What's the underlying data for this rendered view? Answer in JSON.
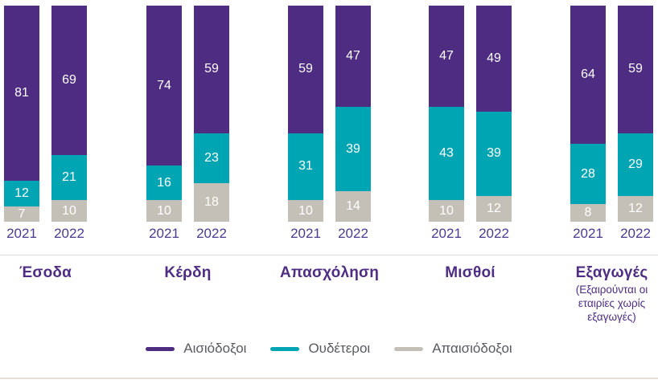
{
  "chart_data": {
    "type": "bar",
    "stacked": true,
    "orientation": "vertical",
    "value_unit": "percent",
    "ylim": [
      0,
      100
    ],
    "grid": false,
    "legend_position": "bottom-center",
    "years": [
      "2021",
      "2022"
    ],
    "series": [
      {
        "name": "Αισιόδοξοι",
        "color": "#4E2C82"
      },
      {
        "name": "Ουδέτεροι",
        "color": "#00A5B4"
      },
      {
        "name": "Απαισιόδοξοι",
        "color": "#C5C0B7"
      }
    ],
    "groups": [
      {
        "label": "Έσοδα",
        "note_lines": [],
        "values": {
          "2021": [
            81,
            12,
            7
          ],
          "2022": [
            69,
            21,
            10
          ]
        }
      },
      {
        "label": "Κέρδη",
        "note_lines": [],
        "values": {
          "2021": [
            74,
            16,
            10
          ],
          "2022": [
            59,
            23,
            18
          ]
        }
      },
      {
        "label": "Απασχόληση",
        "note_lines": [],
        "values": {
          "2021": [
            59,
            31,
            10
          ],
          "2022": [
            47,
            39,
            14
          ]
        }
      },
      {
        "label": "Μισθοί",
        "note_lines": [],
        "values": {
          "2021": [
            47,
            43,
            10
          ],
          "2022": [
            49,
            39,
            12
          ]
        }
      },
      {
        "label": "Εξαγωγές",
        "note_lines": [
          "(Εξαιρούνται οι",
          "εταιρίες χωρίς",
          "εξαγωγές)"
        ],
        "values": {
          "2021": [
            64,
            28,
            8
          ],
          "2022": [
            59,
            29,
            12
          ]
        }
      }
    ]
  },
  "colors": {
    "optimist": "#4E2C82",
    "neutral": "#00A5B4",
    "pessimist": "#C5C0B7",
    "year_label": "#4B3B8F",
    "category_label": "#4E2C82",
    "legend_text": "#595A5E",
    "separator_top": "#DCDCDC",
    "separator_bottom": "#E4E1DB"
  },
  "layout_labels": {
    "segment_names": [
      "optimist",
      "neutral",
      "pessimist"
    ]
  }
}
